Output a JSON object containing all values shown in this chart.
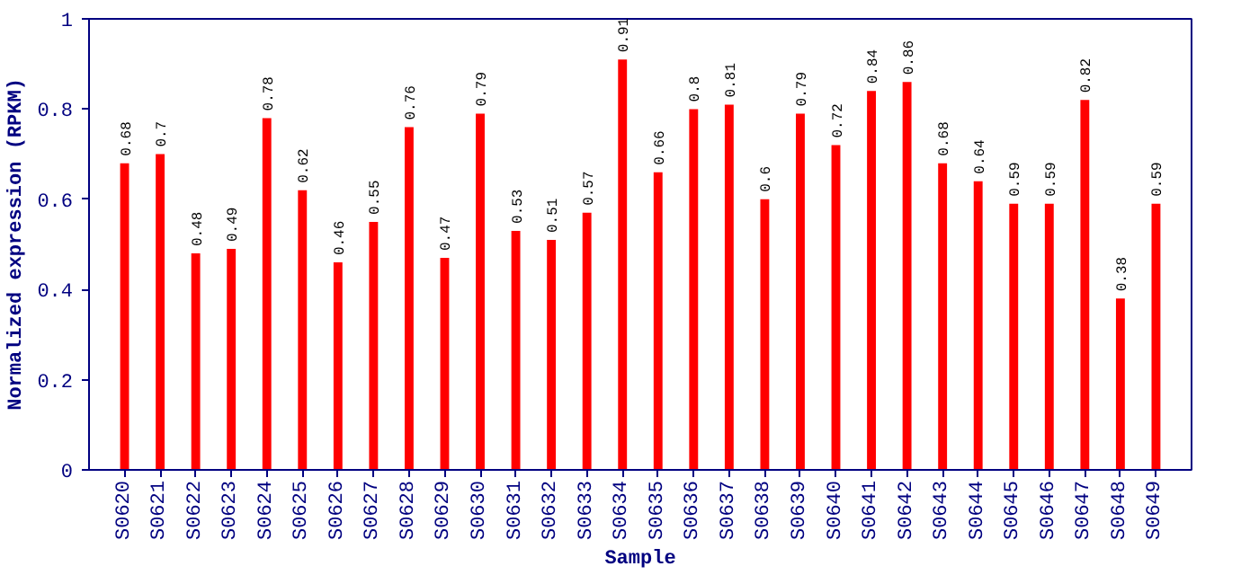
{
  "chart_data": {
    "type": "bar",
    "xlabel": "Sample",
    "ylabel": "Normalized expression (RPKM)",
    "categories": [
      "S0620",
      "S0621",
      "S0622",
      "S0623",
      "S0624",
      "S0625",
      "S0626",
      "S0627",
      "S0628",
      "S0629",
      "S0630",
      "S0631",
      "S0632",
      "S0633",
      "S0634",
      "S0635",
      "S0636",
      "S0637",
      "S0638",
      "S0639",
      "S0640",
      "S0641",
      "S0642",
      "S0643",
      "S0644",
      "S0645",
      "S0646",
      "S0647",
      "S0648",
      "S0649"
    ],
    "values": [
      0.68,
      0.7,
      0.48,
      0.49,
      0.78,
      0.62,
      0.46,
      0.55,
      0.76,
      0.47,
      0.79,
      0.53,
      0.51,
      0.57,
      0.91,
      0.66,
      0.8,
      0.81,
      0.6,
      0.79,
      0.72,
      0.84,
      0.86,
      0.68,
      0.64,
      0.59,
      0.59,
      0.82,
      0.38,
      0.59
    ],
    "color": "#ff0000",
    "ylim": [
      0,
      1
    ],
    "yticks": [
      0,
      0.2,
      0.4,
      0.6,
      0.8,
      1
    ],
    "grid": false,
    "data_labels": true
  }
}
